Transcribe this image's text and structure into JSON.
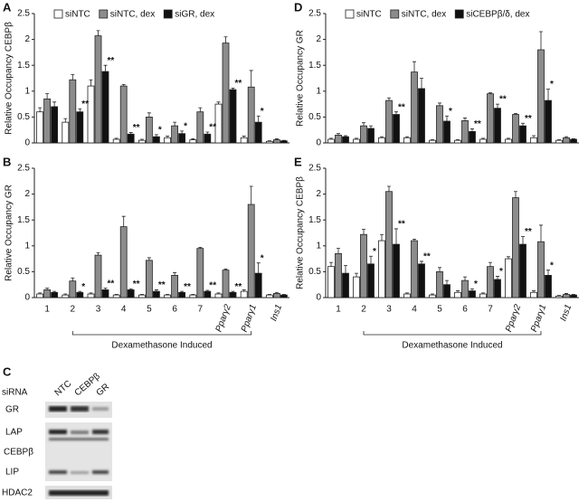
{
  "chart_data": [
    {
      "type": "bar",
      "panel": "A",
      "ylabel": "Relative Occupancy CEBPβ",
      "ylim": [
        0,
        2.5
      ],
      "yticks": [
        0,
        0.5,
        1,
        1.5,
        2,
        2.5
      ],
      "series": [
        {
          "name": "siNTC",
          "color": "#ffffff",
          "values": [
            0.6,
            0.4,
            1.1,
            0.07,
            0.05,
            0.1,
            0.06,
            0.75,
            0.1,
            0.03
          ],
          "errors": [
            0.08,
            0.07,
            0.12,
            0.02,
            0.02,
            0.03,
            0.02,
            0.04,
            0.03,
            0.01
          ]
        },
        {
          "name": "siNTC, dex",
          "color": "#8c8c8c",
          "values": [
            0.85,
            1.22,
            2.07,
            1.1,
            0.5,
            0.33,
            0.6,
            1.93,
            1.08,
            0.06
          ],
          "errors": [
            0.1,
            0.1,
            0.1,
            0.03,
            0.08,
            0.07,
            0.08,
            0.12,
            0.32,
            0.02
          ]
        },
        {
          "name": "siGR, dex",
          "color": "#111111",
          "values": [
            0.7,
            0.6,
            1.38,
            0.17,
            0.12,
            0.18,
            0.17,
            1.03,
            0.4,
            0.04
          ],
          "errors": [
            0.09,
            0.06,
            0.12,
            0.03,
            0.04,
            0.05,
            0.04,
            0.03,
            0.12,
            0.01
          ],
          "significance": [
            null,
            "**",
            "**",
            "**",
            "*",
            "*",
            "**",
            "**",
            "*",
            null
          ]
        }
      ]
    },
    {
      "type": "bar",
      "panel": "B",
      "ylabel": "Relative Occupancy GR",
      "ylim": [
        0,
        2.5
      ],
      "yticks": [
        0,
        0.5,
        1,
        1.5,
        2,
        2.5
      ],
      "categories": [
        "1",
        "2",
        "3",
        "4",
        "5",
        "6",
        "7",
        "Pparγ2",
        "Pparγ1",
        "Ins1"
      ],
      "bracket_label": "Dexamethasone Induced",
      "series": [
        {
          "color": "#ffffff",
          "values": [
            0.07,
            0.05,
            0.07,
            0.05,
            0.05,
            0.05,
            0.05,
            0.07,
            0.12,
            0.05
          ],
          "errors": [
            0.02,
            0.02,
            0.02,
            0.01,
            0.01,
            0.01,
            0.01,
            0.02,
            0.03,
            0.01
          ]
        },
        {
          "color": "#8c8c8c",
          "values": [
            0.15,
            0.32,
            0.82,
            1.37,
            0.72,
            0.43,
            0.95,
            0.53,
            1.8,
            0.08
          ],
          "errors": [
            0.03,
            0.06,
            0.05,
            0.2,
            0.05,
            0.05,
            0.02,
            0.02,
            0.35,
            0.02
          ]
        },
        {
          "color": "#111111",
          "values": [
            0.1,
            0.1,
            0.15,
            0.15,
            0.12,
            0.1,
            0.12,
            0.1,
            0.47,
            0.05
          ],
          "errors": [
            0.02,
            0.02,
            0.03,
            0.02,
            0.03,
            0.02,
            0.02,
            0.02,
            0.2,
            0.01
          ],
          "significance": [
            null,
            "*",
            "**",
            "**",
            "**",
            "**",
            "**",
            "**",
            "*",
            null
          ]
        }
      ]
    },
    {
      "type": "bar",
      "panel": "D",
      "ylabel": "Relative Occupancy GR",
      "ylim": [
        0,
        2.5
      ],
      "yticks": [
        0,
        0.5,
        1,
        1.5,
        2,
        2.5
      ],
      "series": [
        {
          "name": "siNTC",
          "color": "#ffffff",
          "values": [
            0.07,
            0.07,
            0.1,
            0.1,
            0.05,
            0.05,
            0.07,
            0.07,
            0.1,
            0.05
          ],
          "errors": [
            0.02,
            0.02,
            0.02,
            0.02,
            0.01,
            0.01,
            0.02,
            0.02,
            0.04,
            0.01
          ]
        },
        {
          "name": "siNTC, dex",
          "color": "#8c8c8c",
          "values": [
            0.15,
            0.33,
            0.82,
            1.37,
            0.72,
            0.43,
            0.95,
            0.55,
            1.8,
            0.1
          ],
          "errors": [
            0.03,
            0.06,
            0.05,
            0.2,
            0.05,
            0.05,
            0.02,
            0.02,
            0.35,
            0.02
          ]
        },
        {
          "name": "siCEBPβ/δ, dex",
          "color": "#111111",
          "values": [
            0.12,
            0.28,
            0.55,
            1.05,
            0.42,
            0.22,
            0.67,
            0.33,
            0.82,
            0.07
          ],
          "errors": [
            0.02,
            0.05,
            0.05,
            0.2,
            0.1,
            0.05,
            0.08,
            0.05,
            0.22,
            0.01
          ],
          "significance": [
            null,
            null,
            "**",
            null,
            "*",
            "**",
            "**",
            "**",
            "*",
            null
          ]
        }
      ]
    },
    {
      "type": "bar",
      "panel": "E",
      "ylabel": "Relative Occupancy CEBPβ",
      "ylim": [
        0,
        2.5
      ],
      "yticks": [
        0,
        0.5,
        1,
        1.5,
        2,
        2.5
      ],
      "categories": [
        "1",
        "2",
        "3",
        "4",
        "5",
        "6",
        "7",
        "Pparγ2",
        "Pparγ1",
        "Ins1"
      ],
      "bracket_label": "Dexamethasone Induced",
      "series": [
        {
          "color": "#ffffff",
          "values": [
            0.6,
            0.4,
            1.1,
            0.07,
            0.05,
            0.1,
            0.07,
            0.75,
            0.1,
            0.03
          ],
          "errors": [
            0.08,
            0.07,
            0.12,
            0.02,
            0.02,
            0.03,
            0.02,
            0.04,
            0.03,
            0.01
          ]
        },
        {
          "color": "#8c8c8c",
          "values": [
            0.85,
            1.22,
            2.05,
            1.1,
            0.5,
            0.33,
            0.6,
            1.93,
            1.08,
            0.06
          ],
          "errors": [
            0.1,
            0.1,
            0.1,
            0.03,
            0.08,
            0.07,
            0.08,
            0.12,
            0.32,
            0.02
          ]
        },
        {
          "color": "#111111",
          "values": [
            0.47,
            0.65,
            1.03,
            0.65,
            0.25,
            0.13,
            0.35,
            1.03,
            0.43,
            0.05
          ],
          "errors": [
            0.15,
            0.15,
            0.3,
            0.05,
            0.08,
            0.04,
            0.06,
            0.15,
            0.1,
            0.01
          ],
          "significance": [
            null,
            "*",
            "**",
            "**",
            null,
            "*",
            "*",
            "**",
            "*",
            null
          ]
        }
      ]
    }
  ],
  "blot": {
    "panel": "C",
    "row_title": "siRNA",
    "lanes": [
      "NTC",
      "CEBPβ",
      "GR"
    ],
    "rows": [
      "GR",
      "LAP",
      "CEBPβ",
      "LIP",
      "HDAC2"
    ]
  }
}
